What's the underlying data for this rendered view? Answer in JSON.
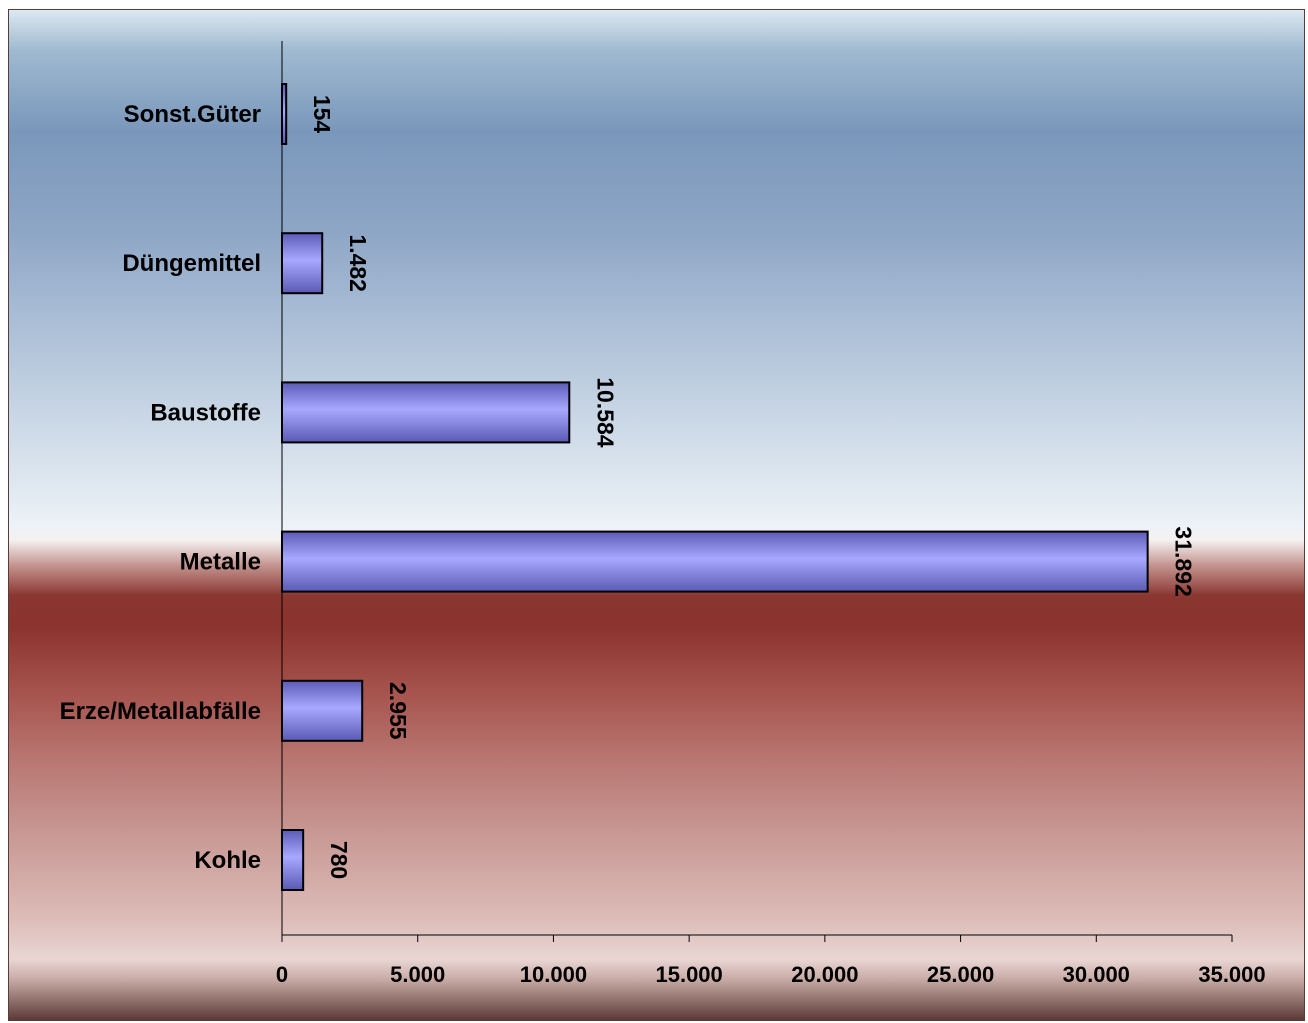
{
  "chart_data": {
    "type": "bar",
    "orientation": "horizontal",
    "categories": [
      "Sonst.Güter",
      "Düngemittel",
      "Baustoffe",
      "Metalle",
      "Erze/Metallabfälle",
      "Kohle"
    ],
    "values": [
      154,
      1482,
      10584,
      31892,
      2955,
      780
    ],
    "value_labels": [
      "154",
      "1.482",
      "10.584",
      "31.892",
      "2.955",
      "780"
    ],
    "x_ticks": [
      "0",
      "5.000",
      "10.000",
      "15.000",
      "20.000",
      "25.000",
      "30.000",
      "35.000"
    ],
    "xlim": [
      0,
      35000
    ],
    "grid": false,
    "legend": "none",
    "colors": {
      "bar": "#8f8ff2",
      "bar_edge": "#000000"
    }
  }
}
